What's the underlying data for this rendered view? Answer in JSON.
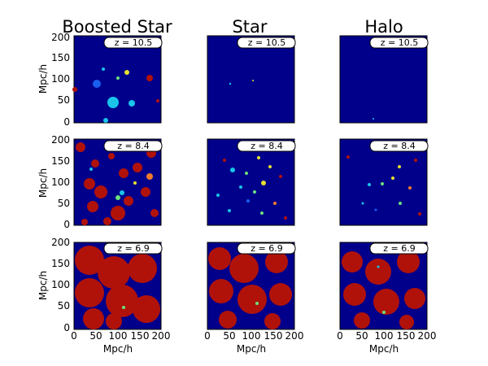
{
  "figure": {
    "columns": [
      {
        "title": "Boosted Star"
      },
      {
        "title": "Star"
      },
      {
        "title": "Halo"
      }
    ],
    "rows": [
      {
        "redshift_label": "z = 10.5"
      },
      {
        "redshift_label": "z = 8.4"
      },
      {
        "redshift_label": "z = 6.9"
      }
    ],
    "y_axis_label": "Mpc/h",
    "x_axis_label": "Mpc/h",
    "y_ticks": [
      "0",
      "50",
      "100",
      "150",
      "200"
    ],
    "x_ticks": [
      "0",
      "50",
      "100",
      "150",
      "200"
    ],
    "colors": {
      "background": "#00008b",
      "ionized": "#b0120a",
      "late_ionized_orange": "#f07a2a",
      "mid_yellow": "#e6e030",
      "mid_green": "#6ce07a",
      "early_cyan": "#19c4e8",
      "early_blue": "#1a5ef0",
      "label_box": "#ffffff"
    }
  }
}
